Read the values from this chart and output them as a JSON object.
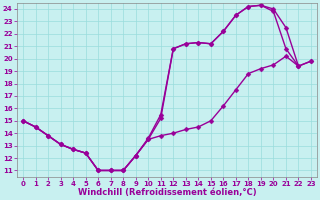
{
  "xlabel": "Windchill (Refroidissement éolien,°C)",
  "bg_color": "#c8f0f0",
  "line_color": "#990099",
  "grid_color": "#99dddd",
  "xlim": [
    -0.5,
    23.5
  ],
  "ylim": [
    10.5,
    24.5
  ],
  "xticks": [
    0,
    1,
    2,
    3,
    4,
    5,
    6,
    7,
    8,
    9,
    10,
    11,
    12,
    13,
    14,
    15,
    16,
    17,
    18,
    19,
    20,
    21,
    22,
    23
  ],
  "yticks": [
    11,
    12,
    13,
    14,
    15,
    16,
    17,
    18,
    19,
    20,
    21,
    22,
    23,
    24
  ],
  "upper_x": [
    0,
    1,
    2,
    3,
    4,
    5,
    6,
    7,
    8,
    9,
    10,
    11,
    12,
    13,
    14,
    15,
    16,
    17,
    18,
    19,
    20,
    21,
    22,
    23
  ],
  "upper_y": [
    15.0,
    14.5,
    13.8,
    13.1,
    12.7,
    12.4,
    11.0,
    11.0,
    11.0,
    12.2,
    13.5,
    15.2,
    20.8,
    21.2,
    21.3,
    21.2,
    22.2,
    23.5,
    24.2,
    24.3,
    24.0,
    22.5,
    19.4,
    19.8
  ],
  "mid_x": [
    0,
    1,
    2,
    3,
    4,
    5,
    6,
    7,
    8,
    9,
    10,
    11,
    12,
    13,
    14,
    15,
    16,
    17,
    18,
    19,
    20,
    21,
    22
  ],
  "mid_y": [
    15.0,
    14.5,
    13.8,
    13.1,
    12.7,
    12.4,
    11.0,
    11.0,
    11.0,
    12.2,
    13.6,
    15.5,
    20.8,
    21.2,
    21.3,
    21.2,
    22.2,
    23.5,
    24.2,
    24.3,
    23.8,
    20.8,
    19.4
  ],
  "lower_x": [
    0,
    1,
    2,
    3,
    4,
    5,
    6,
    7,
    8,
    9,
    10,
    11,
    12,
    13,
    14,
    15,
    16,
    17,
    18,
    19,
    20,
    21,
    22,
    23
  ],
  "lower_y": [
    15.0,
    14.5,
    13.8,
    13.1,
    12.7,
    12.4,
    11.0,
    11.0,
    11.0,
    12.2,
    13.5,
    13.8,
    14.0,
    14.3,
    14.5,
    15.0,
    16.2,
    17.5,
    18.8,
    19.2,
    19.5,
    20.2,
    19.4,
    19.8
  ],
  "marker": "D",
  "markersize": 2.5,
  "linewidth": 1.0,
  "tick_fontsize": 5.0,
  "xlabel_fontsize": 6.0,
  "figsize": [
    3.2,
    2.0
  ],
  "dpi": 100
}
